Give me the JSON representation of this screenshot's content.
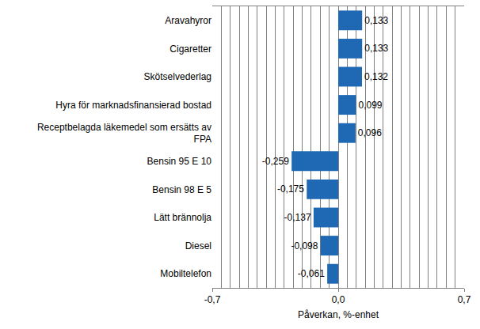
{
  "chart_data": {
    "type": "bar",
    "orientation": "horizontal",
    "x_label": "Påverkan, %-enhet",
    "categories": [
      "Aravahyror",
      "Cigaretter",
      "Skötselvederlag",
      "Hyra för marknadsfinansierad bostad",
      "Receptbelagda läkemedel som ersätts av FPA",
      "Bensin 95 E 10",
      "Bensin 98 E 5",
      "Lätt brännolja",
      "Diesel",
      "Mobiltelefon"
    ],
    "values": [
      0.133,
      0.133,
      0.132,
      0.099,
      0.096,
      -0.259,
      -0.175,
      -0.137,
      -0.098,
      -0.061
    ],
    "value_labels": [
      "0,133",
      "0,133",
      "0,132",
      "0,099",
      "0,096",
      "-0,259",
      "-0,175",
      "-0,137",
      "-0,098",
      "-0,061"
    ],
    "data_labels": true,
    "color": "#1f68b3",
    "xlim": [
      -0.7,
      0.7
    ],
    "xticks": [
      {
        "value": -0.7,
        "label": "-0,7"
      },
      {
        "value": 0,
        "label": "0,0"
      },
      {
        "value": 0.7,
        "label": "0,7"
      }
    ],
    "grid": true
  }
}
